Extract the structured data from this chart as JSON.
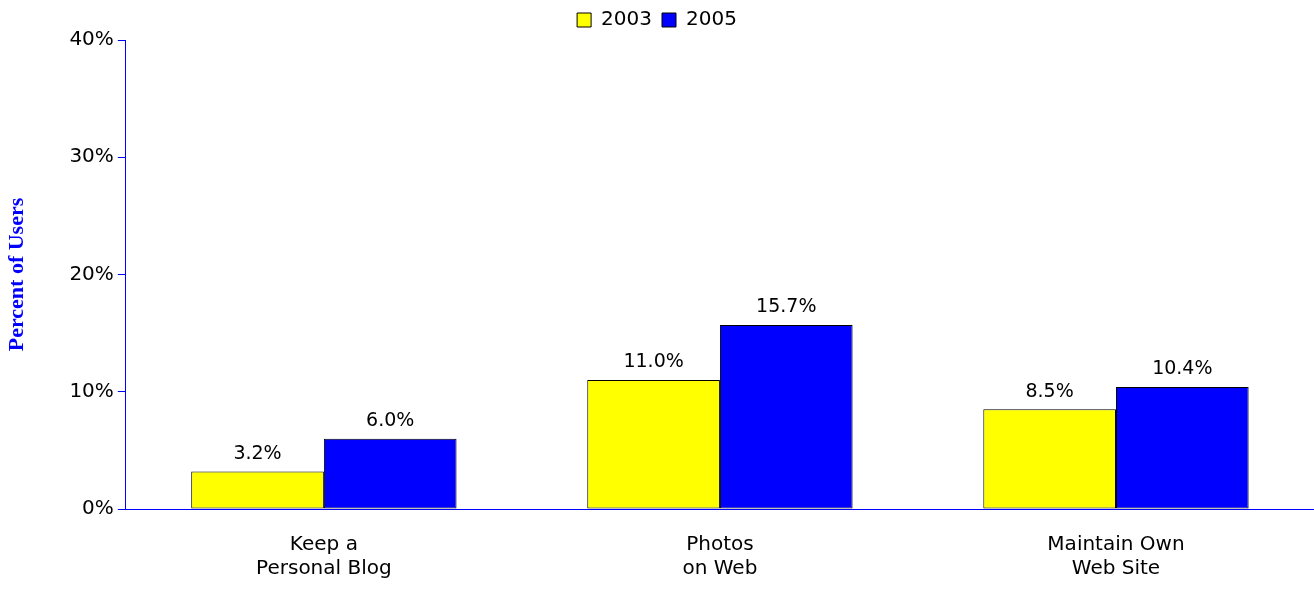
{
  "chart_data": {
    "type": "bar",
    "ylabel": "Percent of Users",
    "categories": [
      "Keep a\nPersonal Blog",
      "Photos\non Web",
      "Maintain Own\nWeb Site"
    ],
    "series": [
      {
        "name": "2003",
        "color": "#ffff00",
        "values": [
          3.2,
          11.0,
          8.5
        ],
        "value_labels": [
          "3.2%",
          "11.0%",
          "8.5%"
        ]
      },
      {
        "name": "2005",
        "color": "#0000ff",
        "values": [
          6.0,
          15.7,
          10.4
        ],
        "value_labels": [
          "6.0%",
          "15.7%",
          "10.4%"
        ]
      }
    ],
    "ylim": [
      0,
      40
    ],
    "yticks": [
      {
        "value": 0,
        "label": "0%"
      },
      {
        "value": 10,
        "label": "10%"
      },
      {
        "value": 20,
        "label": "20%"
      },
      {
        "value": 30,
        "label": "30%"
      },
      {
        "value": 40,
        "label": "40%"
      }
    ],
    "grid": false,
    "legend": "top"
  }
}
